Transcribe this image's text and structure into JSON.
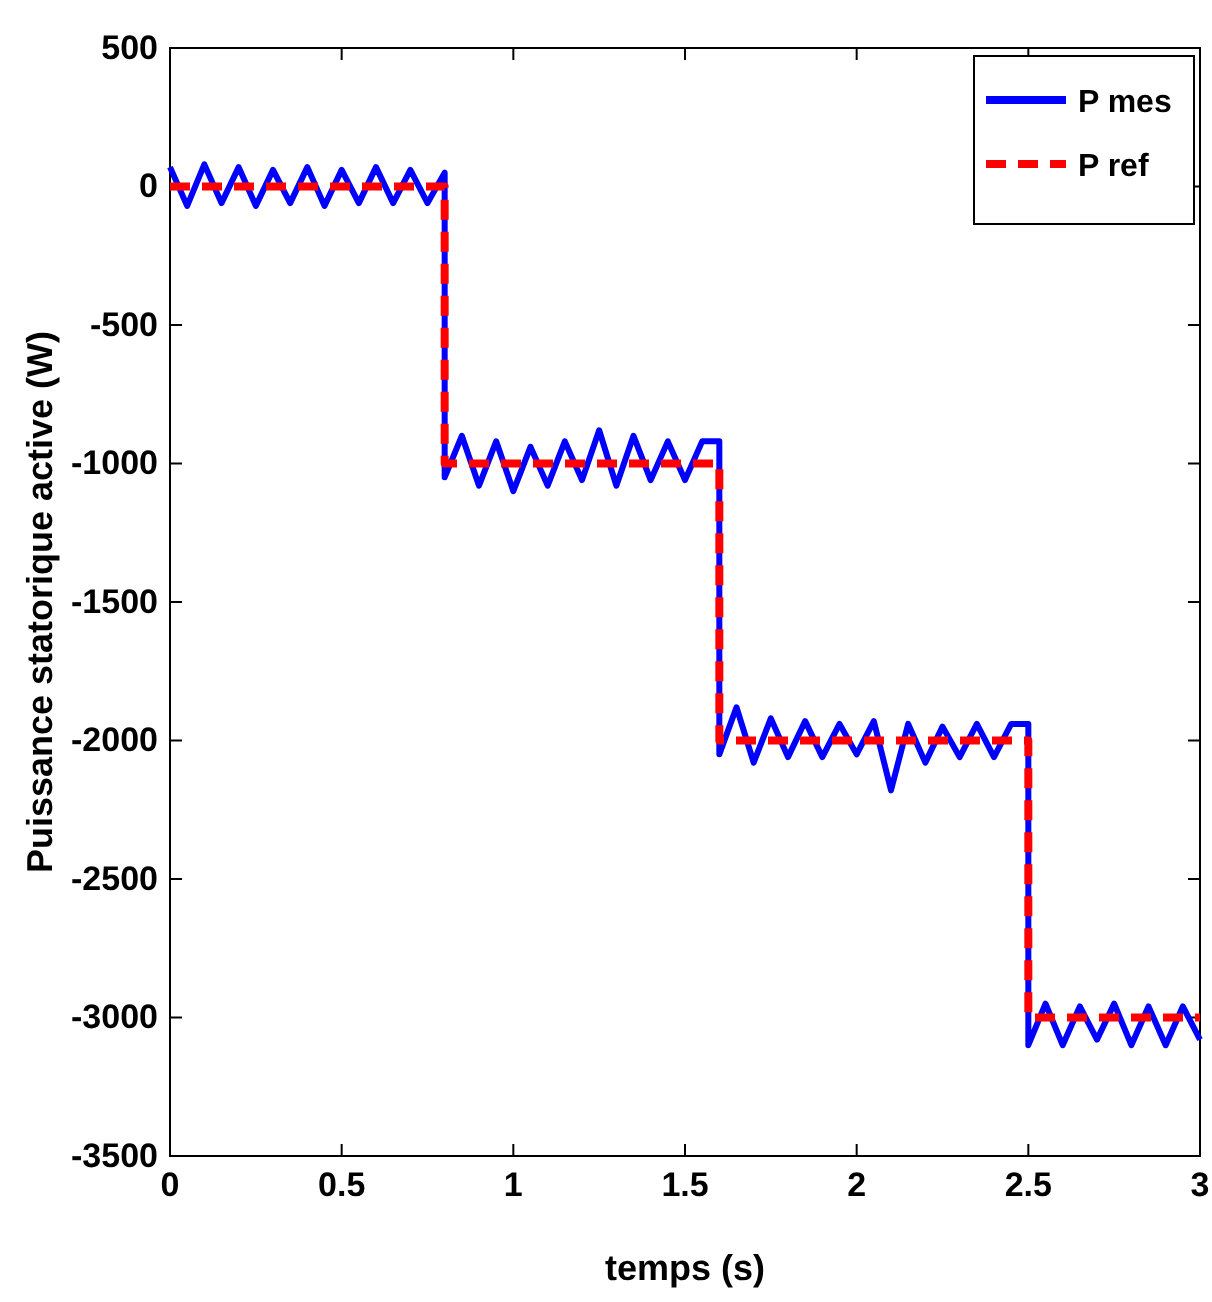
{
  "chart_data": {
    "type": "line",
    "xlabel": "temps (s)",
    "ylabel": "Puissance statorique active (W)",
    "xlim": [
      0,
      3
    ],
    "xticks": [
      0,
      0.5,
      1,
      1.5,
      2,
      2.5,
      3
    ],
    "ylim": [
      -3500,
      500
    ],
    "yticks": [
      -3500,
      -3000,
      -2500,
      -2000,
      -1500,
      -1000,
      -500,
      0,
      500
    ],
    "grid": false,
    "legend": "top right",
    "series": [
      {
        "name": "P mes",
        "color": "#0000ff",
        "line_style": "solid",
        "x": [
          0,
          0.05,
          0.1,
          0.15,
          0.2,
          0.25,
          0.3,
          0.35,
          0.4,
          0.45,
          0.5,
          0.55,
          0.6,
          0.65,
          0.7,
          0.75,
          0.8,
          0.8,
          0.85,
          0.9,
          0.95,
          1,
          1.05,
          1.1,
          1.15,
          1.2,
          1.25,
          1.3,
          1.35,
          1.4,
          1.45,
          1.5,
          1.55,
          1.6,
          1.6,
          1.65,
          1.7,
          1.75,
          1.8,
          1.85,
          1.9,
          1.95,
          2,
          2.05,
          2.1,
          2.15,
          2.2,
          2.25,
          2.3,
          2.35,
          2.4,
          2.45,
          2.5,
          2.5,
          2.55,
          2.6,
          2.65,
          2.7,
          2.75,
          2.8,
          2.85,
          2.9,
          2.95,
          3
        ],
        "values": [
          70,
          -70,
          80,
          -60,
          70,
          -70,
          60,
          -60,
          70,
          -70,
          60,
          -60,
          70,
          -60,
          60,
          -60,
          50,
          -1050,
          -900,
          -1080,
          -920,
          -1100,
          -940,
          -1080,
          -920,
          -1060,
          -880,
          -1080,
          -900,
          -1060,
          -920,
          -1060,
          -920,
          -920,
          -2050,
          -1880,
          -2080,
          -1920,
          -2060,
          -1930,
          -2060,
          -1940,
          -2050,
          -1930,
          -2180,
          -1940,
          -2080,
          -1950,
          -2060,
          -1940,
          -2060,
          -1940,
          -1940,
          -3100,
          -2950,
          -3100,
          -2960,
          -3080,
          -2950,
          -3100,
          -2960,
          -3100,
          -2960,
          -3080
        ]
      },
      {
        "name": "P ref",
        "color": "#ff0000",
        "line_style": "dashed",
        "x": [
          0,
          0.8,
          0.8,
          1.6,
          1.6,
          2.5,
          2.5,
          3
        ],
        "values": [
          0,
          0,
          -1000,
          -1000,
          -2000,
          -2000,
          -3000,
          -3000
        ]
      }
    ]
  }
}
